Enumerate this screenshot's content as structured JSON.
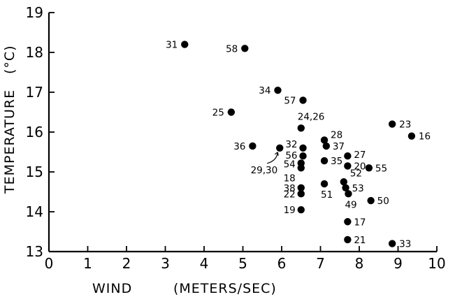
{
  "chart_data": {
    "type": "scatter",
    "xlabel_parts": [
      "WIND",
      "(METERS/SEC)"
    ],
    "ylabel_parts": [
      "TEMPERATURE",
      "(°C)"
    ],
    "xlim": [
      0,
      10
    ],
    "ylim": [
      13,
      19
    ],
    "x_ticks": [
      "0",
      "1",
      "2",
      "3",
      "4",
      "5",
      "6",
      "7",
      "8",
      "9",
      "10"
    ],
    "y_ticks": [
      "13",
      "14",
      "15",
      "16",
      "17",
      "18",
      "19"
    ],
    "grid": false,
    "points": [
      {
        "label": "31",
        "x": 3.5,
        "y": 18.2
      },
      {
        "label": "58",
        "x": 5.05,
        "y": 18.1
      },
      {
        "label": "34",
        "x": 5.9,
        "y": 17.05
      },
      {
        "label": "57",
        "x": 6.55,
        "y": 16.8
      },
      {
        "label": "25",
        "x": 4.7,
        "y": 16.5
      },
      {
        "label": "24,26",
        "x": 6.5,
        "y": 16.1
      },
      {
        "label": "23",
        "x": 8.85,
        "y": 16.2
      },
      {
        "label": "16",
        "x": 9.35,
        "y": 15.9
      },
      {
        "label": "28",
        "x": 7.1,
        "y": 15.8
      },
      {
        "label": "37",
        "x": 7.15,
        "y": 15.65
      },
      {
        "label": "36",
        "x": 5.25,
        "y": 15.65
      },
      {
        "label": "29,30",
        "x": 5.95,
        "y": 15.6
      },
      {
        "label": "32",
        "x": 6.55,
        "y": 15.6
      },
      {
        "label": "56",
        "x": 6.55,
        "y": 15.4
      },
      {
        "label": "27",
        "x": 7.7,
        "y": 15.4
      },
      {
        "label": "35",
        "x": 7.1,
        "y": 15.28
      },
      {
        "label": "54",
        "x": 6.5,
        "y": 15.22
      },
      {
        "label": "18",
        "x": 6.5,
        "y": 15.1
      },
      {
        "label": "20",
        "x": 7.7,
        "y": 15.15
      },
      {
        "label": "55",
        "x": 8.25,
        "y": 15.1
      },
      {
        "label": "52",
        "x": 7.6,
        "y": 14.75
      },
      {
        "label": "51",
        "x": 7.1,
        "y": 14.7
      },
      {
        "label": "38",
        "x": 6.5,
        "y": 14.6
      },
      {
        "label": "53",
        "x": 7.65,
        "y": 14.6
      },
      {
        "label": "22",
        "x": 6.5,
        "y": 14.45
      },
      {
        "label": "49",
        "x": 7.72,
        "y": 14.45
      },
      {
        "label": "50",
        "x": 8.3,
        "y": 14.28
      },
      {
        "label": "19",
        "x": 6.5,
        "y": 14.05
      },
      {
        "label": "17",
        "x": 7.7,
        "y": 13.75
      },
      {
        "label": "21",
        "x": 7.7,
        "y": 13.3
      },
      {
        "label": "33",
        "x": 8.85,
        "y": 13.2
      }
    ]
  }
}
